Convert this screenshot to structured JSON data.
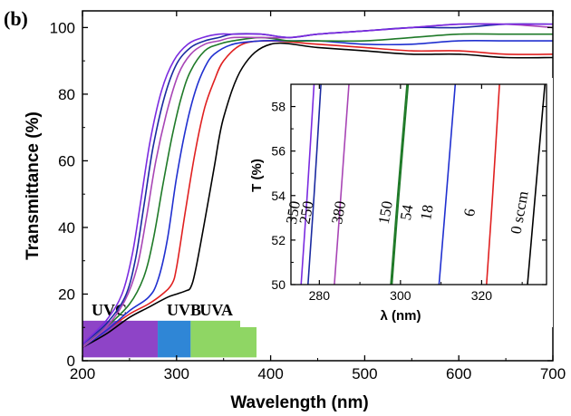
{
  "panel_label": "(b)",
  "chart_data": [
    {
      "type": "line",
      "xlabel": "Wavelength (nm)",
      "ylabel": "Transmittance (%)",
      "xlim": [
        200,
        700
      ],
      "ylim": [
        0,
        105
      ],
      "xticks": [
        200,
        300,
        400,
        500,
        600,
        700
      ],
      "yticks": [
        0,
        20,
        40,
        60,
        80,
        100
      ],
      "bands": [
        {
          "label": "UVC",
          "range": [
            200,
            280
          ],
          "color": "#8e44c7"
        },
        {
          "label": "UVB",
          "range": [
            280,
            315
          ],
          "color": "#2f86d6"
        },
        {
          "label": "UVA",
          "range": [
            315,
            385
          ],
          "color": "#8fd664"
        }
      ],
      "series": [
        {
          "color": "#000000",
          "x": [
            200,
            225,
            250,
            270,
            290,
            300,
            310,
            315,
            320,
            330,
            340,
            350,
            370,
            400,
            450,
            500,
            550,
            600,
            650,
            700
          ],
          "y": [
            4,
            8,
            13,
            16,
            19,
            20,
            21,
            22,
            27,
            42,
            58,
            73,
            88,
            95,
            94,
            93,
            92,
            92,
            91,
            91
          ]
        },
        {
          "color": "#e02020",
          "x": [
            200,
            225,
            250,
            270,
            285,
            295,
            300,
            310,
            320,
            330,
            340,
            350,
            370,
            400,
            450,
            500,
            550,
            600,
            650,
            700
          ],
          "y": [
            4,
            9,
            14,
            17,
            20,
            23,
            28,
            46,
            63,
            76,
            84,
            90,
            95,
            96,
            95,
            94,
            93,
            93,
            92,
            92
          ]
        },
        {
          "color": "#2030d0",
          "x": [
            200,
            225,
            250,
            270,
            280,
            290,
            300,
            310,
            320,
            330,
            340,
            360,
            390,
            420,
            450,
            500,
            550,
            600,
            650,
            700
          ],
          "y": [
            4,
            9,
            15,
            19,
            24,
            36,
            55,
            70,
            81,
            88,
            92,
            95,
            96,
            96,
            96,
            95,
            95,
            96,
            96,
            96
          ]
        },
        {
          "color": "#1f7a28",
          "x": [
            200,
            225,
            250,
            265,
            275,
            285,
            295,
            305,
            315,
            330,
            345,
            360,
            390,
            420,
            450,
            500,
            550,
            600,
            650,
            700
          ],
          "y": [
            4,
            10,
            17,
            25,
            36,
            52,
            67,
            79,
            87,
            93,
            95,
            96,
            97,
            96,
            96,
            96,
            97,
            98,
            98,
            98
          ]
        },
        {
          "color": "#a845b5",
          "x": [
            200,
            225,
            245,
            258,
            268,
            278,
            290,
            302,
            315,
            330,
            345,
            360,
            390,
            420,
            450,
            500,
            550,
            600,
            650,
            700
          ],
          "y": [
            4,
            10,
            18,
            28,
            43,
            60,
            75,
            86,
            92,
            95,
            96,
            97,
            97,
            97,
            98,
            99,
            100,
            101,
            101,
            100
          ]
        },
        {
          "color": "#1a2aa0",
          "x": [
            200,
            225,
            245,
            256,
            265,
            275,
            287,
            300,
            315,
            330,
            345,
            360,
            390,
            420,
            450,
            500,
            550,
            600,
            650,
            700
          ],
          "y": [
            5,
            11,
            19,
            30,
            46,
            64,
            79,
            89,
            94,
            96,
            97,
            98,
            98,
            97,
            98,
            99,
            100,
            100,
            101,
            101
          ]
        },
        {
          "color": "#7a2be0",
          "x": [
            200,
            225,
            242,
            253,
            262,
            272,
            284,
            297,
            312,
            328,
            345,
            360,
            390,
            420,
            450,
            500,
            550,
            600,
            650,
            700
          ],
          "y": [
            5,
            12,
            20,
            32,
            48,
            66,
            81,
            90,
            95,
            97,
            98,
            98,
            98,
            97,
            98,
            99,
            100,
            101,
            101,
            101
          ]
        }
      ]
    },
    {
      "type": "line",
      "xlabel": "λ (nm)",
      "ylabel": "T (%)",
      "xlim": [
        273,
        336
      ],
      "ylim": [
        50,
        59
      ],
      "xticks": [
        280,
        300,
        320
      ],
      "yticks": [
        50,
        52,
        54,
        56,
        58
      ],
      "series": [
        {
          "name": "350",
          "color": "#7a2be0",
          "x": [
            275.5,
            277,
            278.7
          ],
          "y": [
            50,
            54,
            59
          ]
        },
        {
          "name": "250",
          "color": "#1a2aa0",
          "x": [
            277.2,
            278.7,
            280.4
          ],
          "y": [
            50,
            54,
            59
          ]
        },
        {
          "name": "380",
          "color": "#a845b5",
          "x": [
            283.7,
            285.3,
            287.3
          ],
          "y": [
            50,
            54,
            59
          ]
        },
        {
          "name": "150",
          "color": "#1f7a28",
          "x": [
            297.6,
            299.3,
            301.6
          ],
          "y": [
            50,
            54,
            59
          ]
        },
        {
          "name": "54",
          "color": "#1f7a28",
          "x": [
            297.9,
            299.6,
            301.9
          ],
          "y": [
            50,
            54,
            59
          ]
        },
        {
          "name": "18",
          "color": "#2030d0",
          "x": [
            309.5,
            311.3,
            313.5
          ],
          "y": [
            50,
            54,
            59
          ]
        },
        {
          "name": "6",
          "color": "#e02020",
          "x": [
            321.2,
            322.7,
            324.4
          ],
          "y": [
            50,
            54,
            59
          ]
        },
        {
          "name": "0 sccm",
          "color": "#000000",
          "x": [
            331.3,
            333.2,
            335.6
          ],
          "y": [
            50,
            54,
            59
          ]
        }
      ]
    }
  ]
}
